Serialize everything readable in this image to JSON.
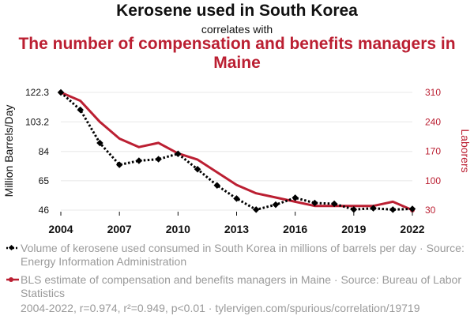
{
  "header": {
    "title": "Kerosene used in South Korea",
    "correlates": "correlates with",
    "subtitle": "The number of compensation and benefits managers in Maine"
  },
  "colors": {
    "series1": "#000000",
    "series2": "#bb1f32",
    "muted": "#9a9a9a",
    "grid": "#e8e8e8"
  },
  "chart_data": {
    "type": "line",
    "x": [
      2004,
      2005,
      2006,
      2007,
      2008,
      2009,
      2010,
      2011,
      2012,
      2013,
      2014,
      2015,
      2016,
      2017,
      2018,
      2019,
      2020,
      2021,
      2022
    ],
    "xticks": [
      "2004",
      "2007",
      "2010",
      "2013",
      "2016",
      "2019",
      "2022"
    ],
    "xlim": [
      2004,
      2022
    ],
    "y_left": {
      "label": "Million Barrels/Day",
      "ticks": [
        "122.3",
        "103.2",
        "84",
        "65",
        "46"
      ],
      "ylim": [
        46,
        122.3
      ]
    },
    "y_right": {
      "label": "Laborers",
      "ticks": [
        "310",
        "240",
        "170",
        "100",
        "30"
      ],
      "ylim": [
        30,
        310
      ]
    },
    "grid": "horizontal",
    "series": [
      {
        "name": "Volume of kerosene used consumed in South Korea in millions of barrels per day",
        "axis": "left",
        "style": "dotted-diamond",
        "values": [
          122.3,
          111,
          89.5,
          75.4,
          78,
          79,
          82.5,
          72.5,
          62,
          53.5,
          46.3,
          49.5,
          54,
          50.6,
          50.1,
          46.4,
          47.2,
          46.3,
          46.8
        ]
      },
      {
        "name": "BLS estimate of compensation and benefits managers in Maine",
        "axis": "right",
        "style": "solid-circle",
        "values": [
          310,
          290,
          240,
          200,
          180,
          190,
          165,
          150,
          120,
          90,
          70,
          60,
          50,
          40,
          40,
          40,
          40,
          50,
          30
        ]
      }
    ]
  },
  "legend": [
    {
      "text": "Volume of kerosene used consumed in South Korea in millions of barrels per day · Source: Energy Information Administration"
    },
    {
      "text": "BLS estimate of compensation and benefits managers in Maine · Source: Bureau of Labor Statistics"
    }
  ],
  "footer": "2004-2022, r=0.974, r²=0.949, p<0.01 · tylervigen.com/spurious/correlation/19719"
}
